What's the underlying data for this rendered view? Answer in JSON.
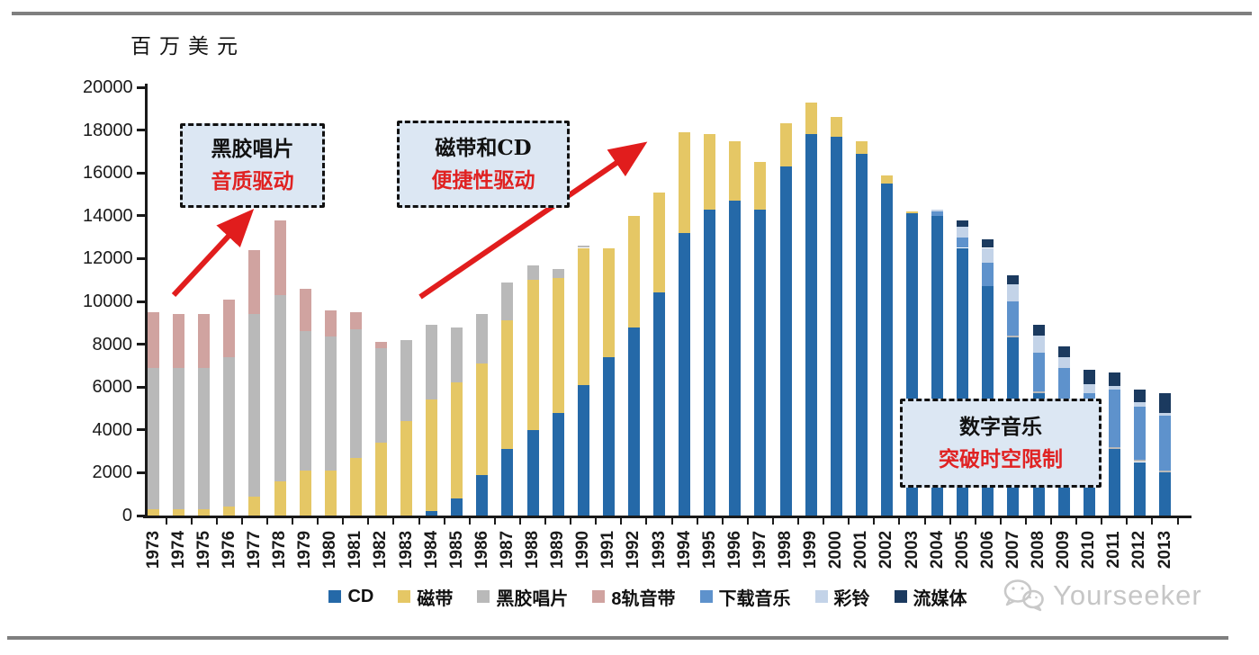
{
  "page": {
    "unit_label": "百万美元",
    "watermark": "Yourseeker"
  },
  "chart_data": {
    "type": "bar",
    "stacked": true,
    "ylabel": "百万美元",
    "ylim": [
      0,
      20000
    ],
    "ytick_step": 2000,
    "grid": false,
    "legend_position": "bottom",
    "categories": [
      "1973",
      "1974",
      "1975",
      "1976",
      "1977",
      "1978",
      "1979",
      "1980",
      "1981",
      "1982",
      "1983",
      "1984",
      "1985",
      "1986",
      "1987",
      "1988",
      "1989",
      "1990",
      "1991",
      "1992",
      "1993",
      "1994",
      "1995",
      "1996",
      "1997",
      "1998",
      "1999",
      "2000",
      "2001",
      "2002",
      "2003",
      "2004",
      "2005",
      "2006",
      "2007",
      "2008",
      "2009",
      "2010",
      "2011",
      "2012",
      "2013"
    ],
    "series": [
      {
        "name": "CD",
        "color": "#2569a8",
        "values": [
          0,
          0,
          0,
          0,
          0,
          0,
          0,
          0,
          0,
          0,
          0,
          200,
          800,
          1900,
          3100,
          4000,
          4800,
          6100,
          7400,
          8800,
          10400,
          13200,
          14300,
          14700,
          14300,
          16300,
          17800,
          17700,
          16900,
          15500,
          14100,
          14000,
          12500,
          10700,
          8300,
          5700,
          4200,
          3500,
          3100,
          2500,
          2000
        ]
      },
      {
        "name": "磁带",
        "color": "#e5c765",
        "values": [
          300,
          300,
          300,
          400,
          900,
          1600,
          2100,
          2100,
          2700,
          3400,
          4400,
          5200,
          5400,
          5200,
          6000,
          7000,
          6300,
          6400,
          5100,
          5200,
          4700,
          4700,
          3500,
          2800,
          2200,
          2000,
          1500,
          900,
          600,
          400,
          100,
          0,
          0,
          0,
          0,
          0,
          0,
          0,
          0,
          0,
          0
        ]
      },
      {
        "name": "黑胶唱片",
        "color": "#b9b9b9",
        "values": [
          6600,
          6600,
          6600,
          7000,
          8500,
          8700,
          6500,
          6250,
          6000,
          4400,
          3800,
          3500,
          2600,
          2300,
          1800,
          700,
          400,
          100,
          0,
          0,
          0,
          0,
          0,
          0,
          0,
          0,
          0,
          0,
          0,
          0,
          0,
          0,
          0,
          0,
          100,
          100,
          100,
          100,
          100,
          100,
          100
        ]
      },
      {
        "name": "8轨音带",
        "color": "#d0a3a0",
        "values": [
          2600,
          2500,
          2500,
          2700,
          3000,
          3500,
          2000,
          1250,
          800,
          300,
          0,
          0,
          0,
          0,
          0,
          0,
          0,
          0,
          0,
          0,
          0,
          0,
          0,
          0,
          0,
          0,
          0,
          0,
          0,
          0,
          0,
          0,
          0,
          0,
          0,
          0,
          0,
          0,
          0,
          0,
          0
        ]
      },
      {
        "name": "下载音乐",
        "color": "#5e92cc",
        "values": [
          0,
          0,
          0,
          0,
          0,
          0,
          0,
          0,
          0,
          0,
          0,
          0,
          0,
          0,
          0,
          0,
          0,
          0,
          0,
          0,
          0,
          0,
          0,
          0,
          0,
          0,
          0,
          0,
          0,
          0,
          0,
          200,
          500,
          1100,
          1600,
          1800,
          2600,
          2100,
          2700,
          2500,
          2550
        ]
      },
      {
        "name": "彩铃",
        "color": "#c3d3e8",
        "values": [
          0,
          0,
          0,
          0,
          0,
          0,
          0,
          0,
          0,
          0,
          0,
          0,
          0,
          0,
          0,
          0,
          0,
          0,
          0,
          0,
          0,
          0,
          0,
          0,
          0,
          0,
          0,
          0,
          0,
          0,
          0,
          100,
          500,
          700,
          800,
          800,
          500,
          450,
          150,
          200,
          150
        ]
      },
      {
        "name": "流媒体",
        "color": "#1b3a5f",
        "values": [
          0,
          0,
          0,
          0,
          0,
          0,
          0,
          0,
          0,
          0,
          0,
          0,
          0,
          0,
          0,
          0,
          0,
          0,
          0,
          0,
          0,
          0,
          0,
          0,
          0,
          0,
          0,
          0,
          0,
          0,
          0,
          0,
          300,
          400,
          400,
          500,
          500,
          650,
          650,
          600,
          900
        ]
      }
    ]
  },
  "annotations": [
    {
      "line1": "黑胶唱片",
      "line2": "音质驱动"
    },
    {
      "line1": "磁带和CD",
      "line2": "便捷性驱动"
    },
    {
      "line1": "数字音乐",
      "line2": "突破时空限制"
    }
  ],
  "colors": {
    "arrow": "#e11d1d",
    "annotation_red": "#e02222",
    "box_bg": "#dce7f3"
  }
}
